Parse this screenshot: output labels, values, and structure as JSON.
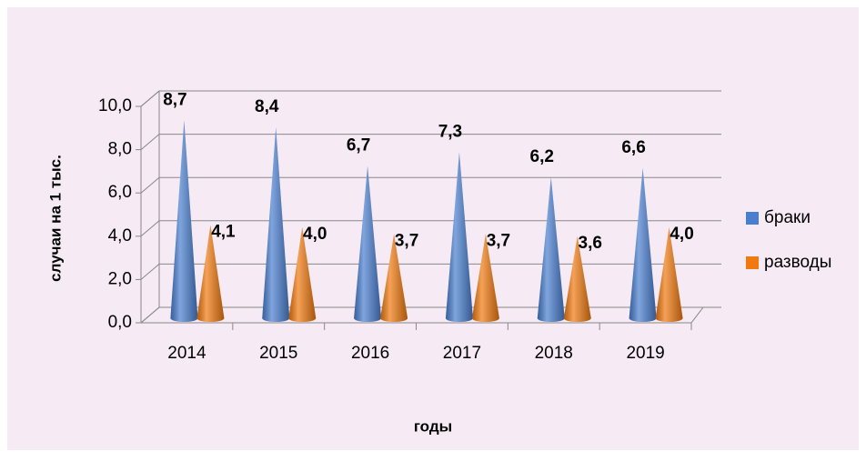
{
  "chart_data": {
    "type": "cone3d",
    "x_label": "годы",
    "y_label": "случаи на 1 тыс.",
    "categories": [
      "2014",
      "2015",
      "2016",
      "2017",
      "2018",
      "2019"
    ],
    "series": [
      {
        "name": "браки",
        "color": "#4a7fd0",
        "values": [
          8.7,
          8.4,
          6.7,
          7.3,
          6.2,
          6.6
        ],
        "value_labels": [
          "8,7",
          "8,4",
          "6,7",
          "7,3",
          "6,2",
          "6,6"
        ]
      },
      {
        "name": "разводы",
        "color": "#f07a10",
        "values": [
          4.1,
          4.0,
          3.7,
          3.7,
          3.6,
          4.0
        ],
        "value_labels": [
          "4,1",
          "4,0",
          "3,7",
          "3,7",
          "3,6",
          "4,0"
        ]
      }
    ],
    "ylim": [
      0,
      10
    ],
    "yticks": [
      {
        "value": 0,
        "label": "0,0"
      },
      {
        "value": 2,
        "label": "2,0"
      },
      {
        "value": 4,
        "label": "4,0"
      },
      {
        "value": 6,
        "label": "6,0"
      },
      {
        "value": 8,
        "label": "8,0"
      },
      {
        "value": 10,
        "label": "10,0"
      }
    ],
    "grid": true,
    "legend": "right"
  }
}
